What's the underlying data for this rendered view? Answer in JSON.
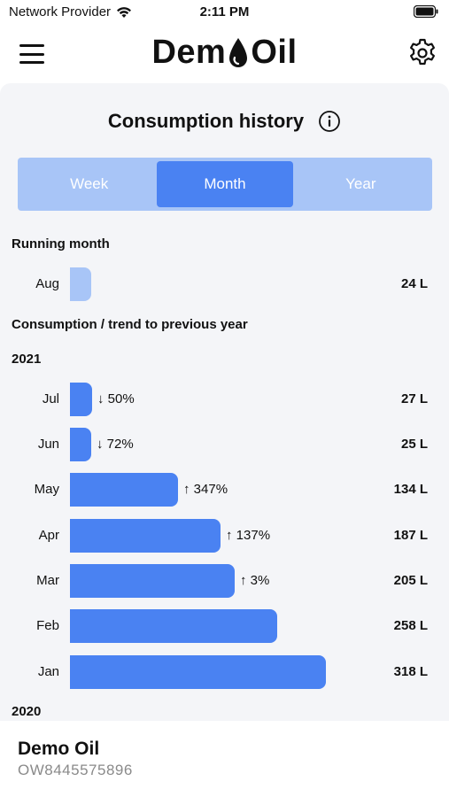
{
  "status_bar": {
    "carrier": "Network Provider",
    "time": "2:11 PM"
  },
  "nav": {
    "logo_left": "Dem",
    "logo_right": "Oil"
  },
  "card": {
    "title": "Consumption history",
    "tabs": [
      {
        "label": "Week",
        "active": false
      },
      {
        "label": "Month",
        "active": true
      },
      {
        "label": "Year",
        "active": false
      }
    ],
    "running_label": "Running month",
    "running": {
      "month": "Aug",
      "value": "24 L",
      "liters": 24
    },
    "trend_label": "Consumption / trend to previous year",
    "year_2021": "2021",
    "year_2020": "2020",
    "months": [
      {
        "month": "Jul",
        "trend": "↓ 50%",
        "value": "27 L",
        "liters": 27
      },
      {
        "month": "Jun",
        "trend": "↓ 72%",
        "value": "25 L",
        "liters": 25
      },
      {
        "month": "May",
        "trend": "↑ 347%",
        "value": "134 L",
        "liters": 134
      },
      {
        "month": "Apr",
        "trend": "↑ 137%",
        "value": "187 L",
        "liters": 187
      },
      {
        "month": "Mar",
        "trend": "↑ 3%",
        "value": "205 L",
        "liters": 205
      },
      {
        "month": "Feb",
        "trend": "",
        "value": "258 L",
        "liters": 258
      },
      {
        "month": "Jan",
        "trend": "",
        "value": "318 L",
        "liters": 318
      }
    ]
  },
  "footer": {
    "name": "Demo Oil",
    "id": "OW8445575896"
  },
  "colors": {
    "accent": "#4a82f2",
    "accent_light": "#a8c5f7",
    "card_bg": "#f4f5f8"
  }
}
